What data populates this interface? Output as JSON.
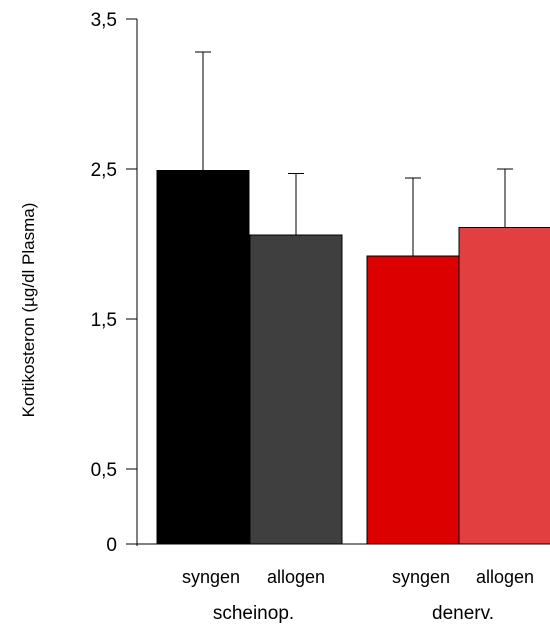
{
  "chart_data": {
    "type": "bar",
    "ylabel": "Kortikosteron (µg/dl Plasma)",
    "ylim": [
      0,
      3.5
    ],
    "yticks": [
      {
        "value": 0,
        "label": "0"
      },
      {
        "value": 0.5,
        "label": "0,5"
      },
      {
        "value": 1.5,
        "label": "1,5"
      },
      {
        "value": 2.5,
        "label": "2,5"
      },
      {
        "value": 3.5,
        "label": "3,5"
      }
    ],
    "categories": [
      "syngen",
      "allogen",
      "syngen",
      "allogen"
    ],
    "groups": [
      {
        "label": "scheinop.",
        "indices": [
          0,
          1
        ]
      },
      {
        "label": "denerv.",
        "indices": [
          2,
          3
        ]
      }
    ],
    "values": [
      2.49,
      2.06,
      1.92,
      2.11
    ],
    "errors": [
      0.79,
      0.41,
      0.52,
      0.39
    ],
    "colors": [
      "#000000",
      "#3f3f3f",
      "#dd0000",
      "#e24040"
    ],
    "grid": false,
    "legend": "none"
  }
}
